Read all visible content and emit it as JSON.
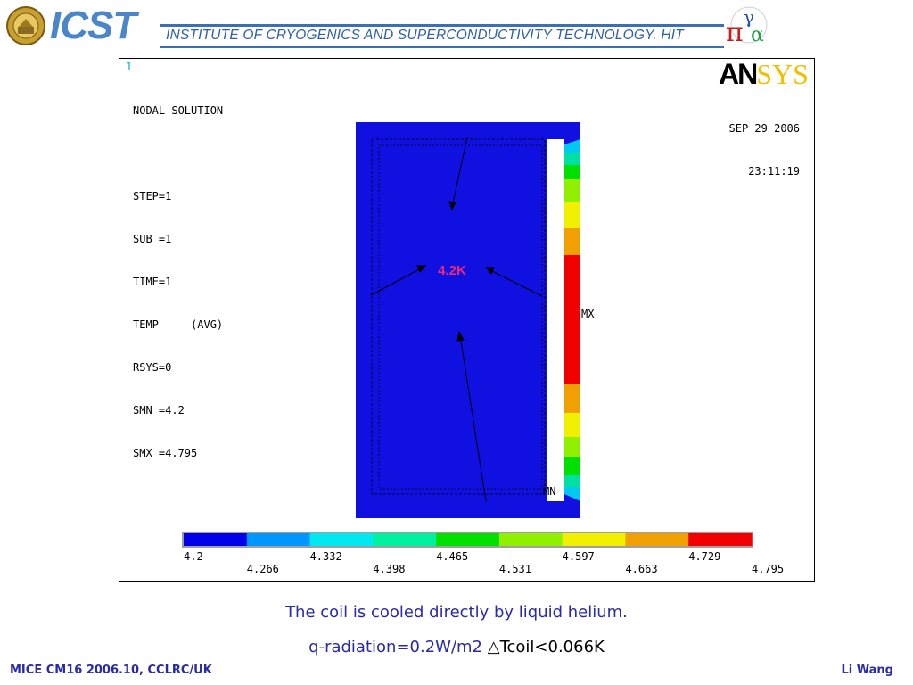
{
  "header": {
    "logo_text": "ICST",
    "institute": "INSTITUTE OF CRYOGENICS AND SUPERCONDUCTIVITY TECHNOLOGY. HIT"
  },
  "figure": {
    "window_number": "1",
    "info_lines": [
      "NODAL SOLUTION",
      "",
      "STEP=1",
      "SUB =1",
      "TIME=1",
      "TEMP     (AVG)",
      "RSYS=0",
      "SMN =4.2",
      "SMX =4.795"
    ],
    "brand_left": "AN",
    "brand_right": "SYS",
    "date": "SEP 29 2006",
    "time": "23:11:19",
    "mx_label": "MX",
    "mn_label": "MN",
    "annotation": "4.2K",
    "annotation_color": "#e8287a",
    "legend": {
      "values_top": [
        "4.2",
        "4.332",
        "4.465",
        "4.597",
        "4.729"
      ],
      "values_bottom": [
        "4.266",
        "4.398",
        "4.531",
        "4.663",
        "4.795"
      ],
      "colors": [
        "#0000e8",
        "#0096ff",
        "#00e8f0",
        "#00f0a0",
        "#00e000",
        "#90f000",
        "#f0f000",
        "#f0a000",
        "#f00000"
      ]
    }
  },
  "captions": {
    "line1": "The coil is cooled directly by liquid helium.",
    "line2_a": "q-radiation=0.2W/m2 ",
    "line2_b": "△Tcoil<0.066K"
  },
  "footer": {
    "left": "MICE CM16 2006.10, CCLRC/UK",
    "right": "Li Wang"
  }
}
